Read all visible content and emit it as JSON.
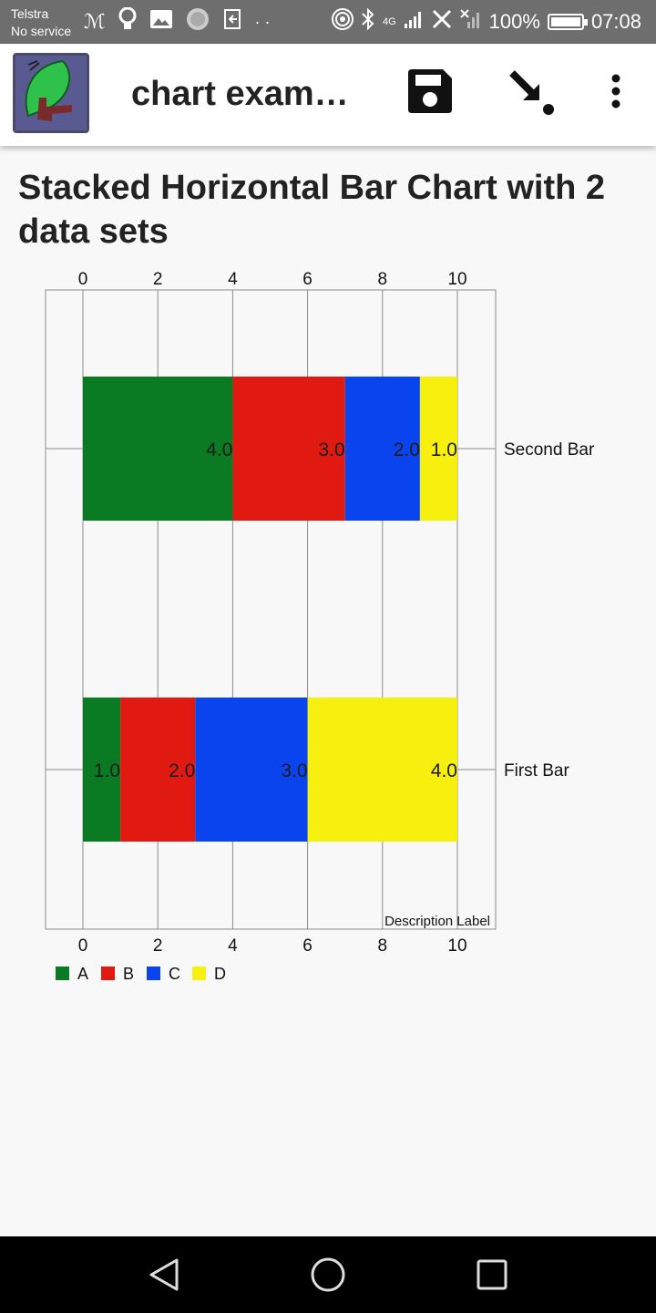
{
  "status_bar": {
    "carrier_line1": "Telstra",
    "carrier_line2": "No service",
    "battery": "100%",
    "time": "07:08",
    "network": "4G"
  },
  "app_bar": {
    "title": "chart exam…",
    "icons": [
      "app-logo-icon",
      "save-icon",
      "download-arrow-icon",
      "more-vert-icon"
    ]
  },
  "heading": "Stacked Horizontal Bar Chart with 2 data sets",
  "chart_data": {
    "type": "bar",
    "orientation": "horizontal",
    "stacked": true,
    "categories": [
      "First Bar",
      "Second Bar"
    ],
    "series": [
      {
        "name": "A",
        "color": "#0a7b22",
        "values": [
          1.0,
          4.0
        ]
      },
      {
        "name": "B",
        "color": "#e01a10",
        "values": [
          2.0,
          3.0
        ]
      },
      {
        "name": "C",
        "color": "#0a44ee",
        "values": [
          3.0,
          2.0
        ]
      },
      {
        "name": "D",
        "color": "#f7ef0e",
        "values": [
          4.0,
          1.0
        ]
      }
    ],
    "value_labels": {
      "First Bar": [
        "1.0",
        "2.0",
        "3.0",
        "4.0"
      ],
      "Second Bar": [
        "4.0",
        "3.0",
        "2.0",
        "1.0"
      ]
    },
    "x_ticks": [
      "0",
      "2",
      "4",
      "6",
      "8",
      "10"
    ],
    "xlim": [
      0,
      10
    ],
    "description": "Description Label",
    "grid": true,
    "legend": "bottom-left",
    "top_axis": true,
    "bottom_axis": true
  }
}
